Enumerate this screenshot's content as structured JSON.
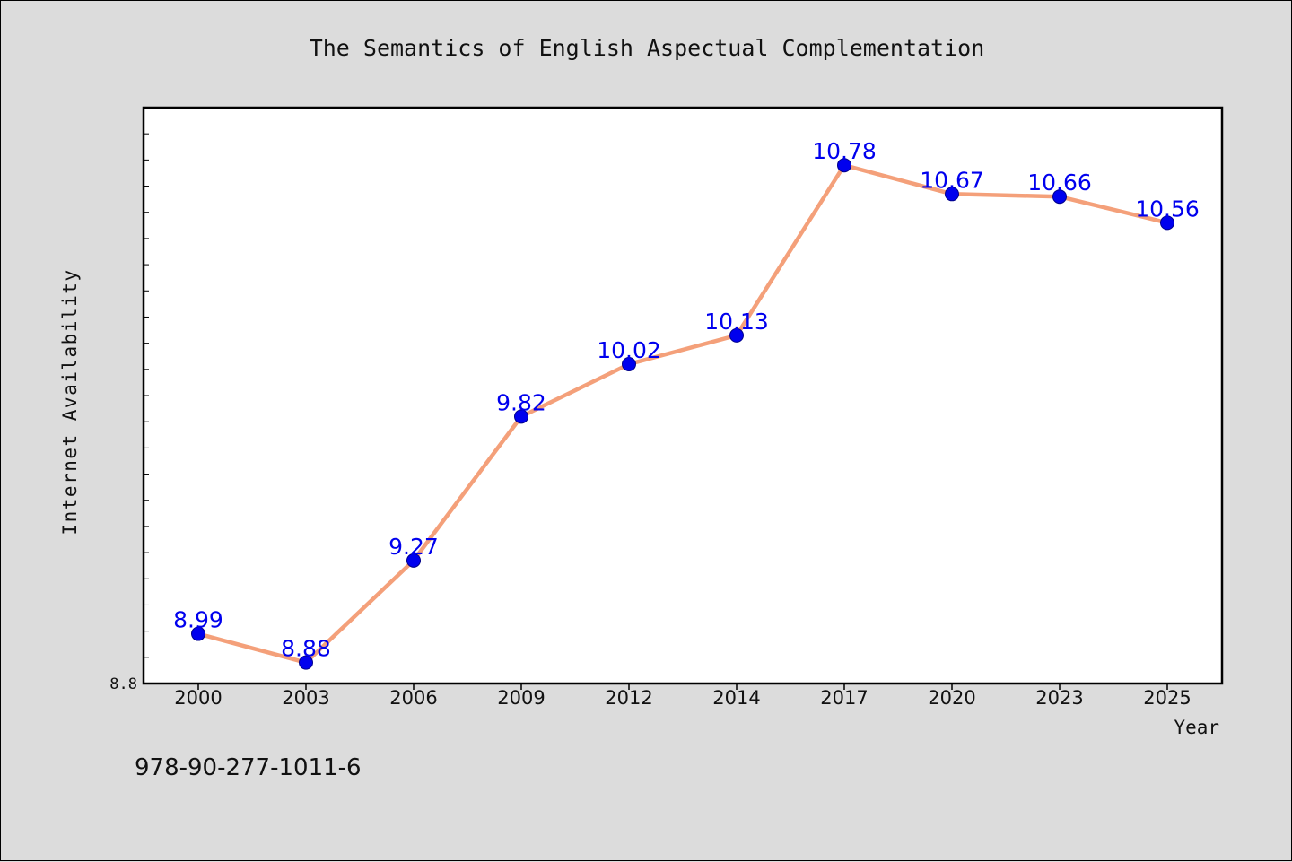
{
  "chart_data": {
    "type": "line",
    "title": "The Semantics of English Aspectual Complementation",
    "xlabel": "Year",
    "ylabel": "Internet Availability",
    "categories": [
      "2000",
      "2003",
      "2006",
      "2009",
      "2012",
      "2014",
      "2017",
      "2020",
      "2023",
      "2025"
    ],
    "series": [
      {
        "values": [
          8.99,
          8.88,
          9.27,
          9.82,
          10.02,
          10.13,
          10.78,
          10.67,
          10.66,
          10.56
        ],
        "labels": [
          "8.99",
          "8.88",
          "9.27",
          "9.82",
          "10.02",
          "10.13",
          "10.78",
          "10.67",
          "10.66",
          "10.56"
        ]
      }
    ],
    "y_tick_labels": [
      "8.8"
    ],
    "ylim": [
      8.8,
      11.0
    ],
    "grid": false,
    "legend": "none",
    "colors": {
      "line": "#f4a07a",
      "marker": "#0000ee",
      "marker_edge": "#00008b",
      "data_label": "#0000ee"
    }
  },
  "footer": {
    "isbn": "978-90-277-1011-6"
  }
}
